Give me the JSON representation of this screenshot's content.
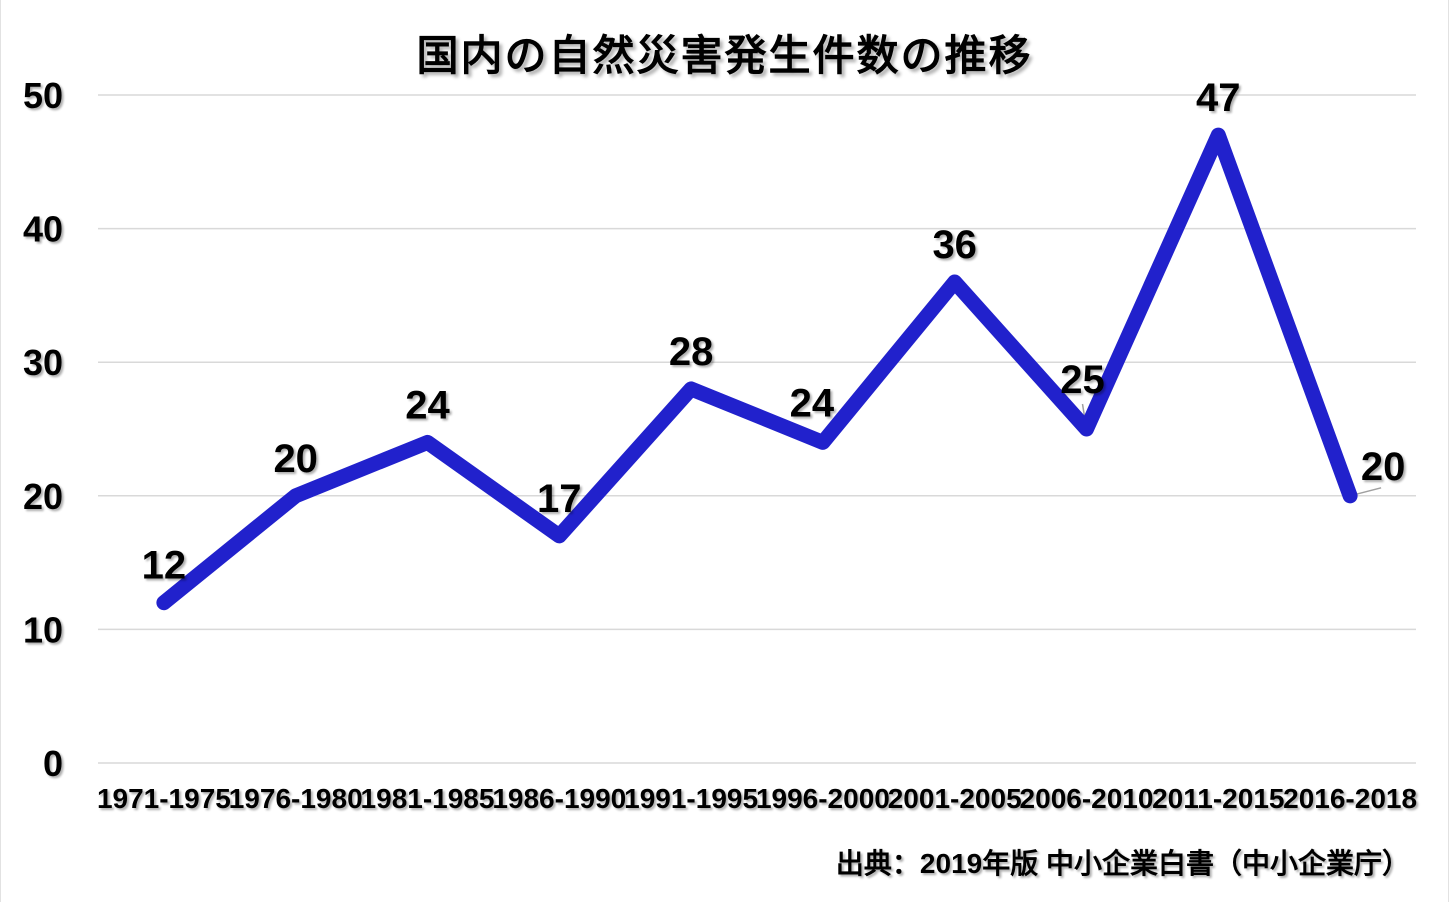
{
  "source": "出典：2019年版 中小企業白書（中小企業庁）",
  "chart_data": {
    "type": "line",
    "title": "国内の自然災害発生件数の推移",
    "categories": [
      "1971-1975",
      "1976-1980",
      "1981-1985",
      "1986-1990",
      "1991-1995",
      "1996-2000",
      "2001-2005",
      "2006-2010",
      "2011-2015",
      "2016-2018"
    ],
    "values": [
      12,
      20,
      24,
      17,
      28,
      24,
      36,
      25,
      47,
      20
    ],
    "xlabel": "",
    "ylabel": "",
    "ylim": [
      0,
      50
    ],
    "yticks": [
      0,
      10,
      20,
      30,
      40,
      50
    ],
    "grid": true,
    "legend_position": "none",
    "data_labels": true,
    "colors": {
      "line": "#2121CC",
      "gridline": "#D9D9D9",
      "leader_line": "#A0A0A0",
      "text": "#000000",
      "background": "#FFFFFF"
    }
  }
}
